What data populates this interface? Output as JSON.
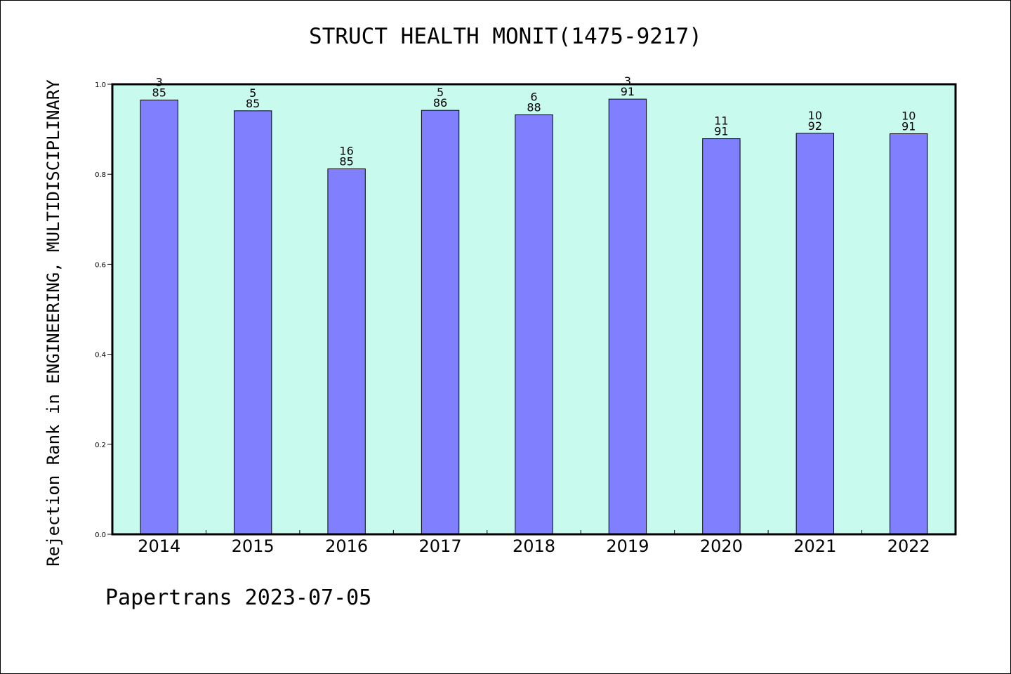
{
  "chart_data": {
    "type": "bar",
    "title": "STRUCT HEALTH MONIT(1475-9217)",
    "ylabel": "Rejection Rank in ENGINEERING, MULTIDISCIPLINARY",
    "xlabel": "",
    "ylim": [
      0,
      1.0
    ],
    "yticks": [
      "0.0",
      "0.2",
      "0.4",
      "0.6",
      "0.8",
      "1.0"
    ],
    "categories": [
      "2014",
      "2015",
      "2016",
      "2017",
      "2018",
      "2019",
      "2020",
      "2021",
      "2022"
    ],
    "values": [
      0.965,
      0.941,
      0.812,
      0.942,
      0.932,
      0.967,
      0.879,
      0.891,
      0.89
    ],
    "rank_labels": [
      "3",
      "5",
      "16",
      "5",
      "6",
      "3",
      "11",
      "10",
      "10"
    ],
    "total_labels": [
      "85",
      "85",
      "85",
      "86",
      "88",
      "91",
      "91",
      "92",
      "91"
    ],
    "grid": false,
    "colors": {
      "plot_background": "#c8fbee",
      "bar_fill": "#8080ff",
      "bar_edge": "#000000"
    }
  },
  "footer": {
    "text": "Papertrans 2023-07-05"
  }
}
